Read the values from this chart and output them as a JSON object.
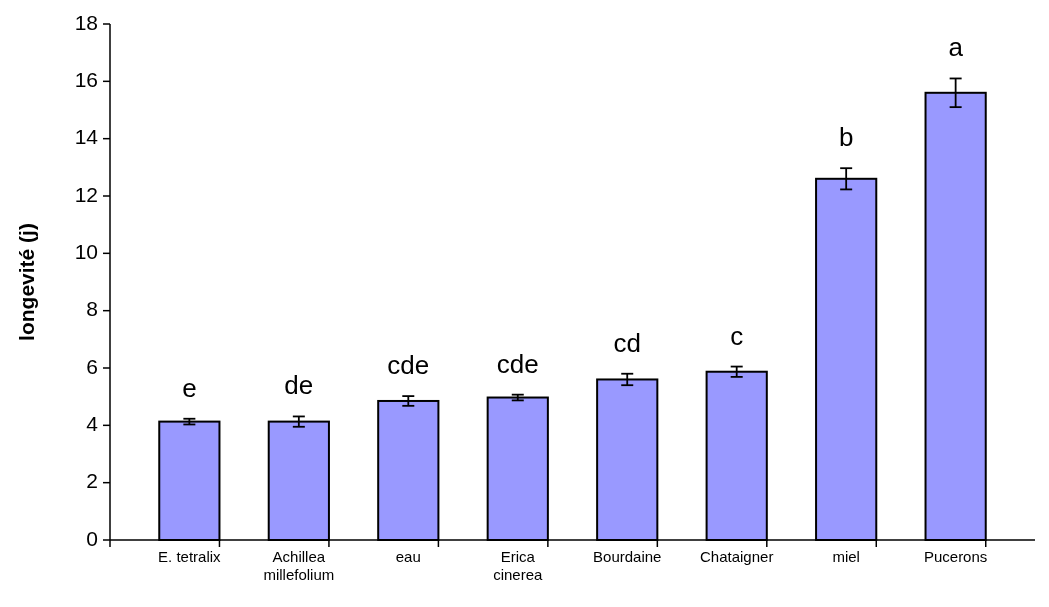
{
  "chart_data": {
    "type": "bar",
    "ylabel": "longevité (j)",
    "categories": [
      "E. tetralix",
      "Achillea millefolium",
      "eau",
      "Erica cinerea",
      "Bourdaine",
      "Chataigner",
      "miel",
      "Pucerons"
    ],
    "values": [
      4.13,
      4.13,
      4.85,
      4.97,
      5.6,
      5.87,
      12.6,
      15.6
    ],
    "errors": [
      0.1,
      0.18,
      0.17,
      0.1,
      0.2,
      0.18,
      0.37,
      0.5
    ],
    "color": "#9999ff",
    "ylim": [
      0,
      18
    ],
    "yticks": [
      0,
      2,
      4,
      6,
      8,
      10,
      12,
      14,
      16,
      18
    ],
    "grid": false,
    "annotations": [
      "e",
      "de",
      "cde",
      "cde",
      "cd",
      "c",
      "b",
      "a"
    ]
  }
}
